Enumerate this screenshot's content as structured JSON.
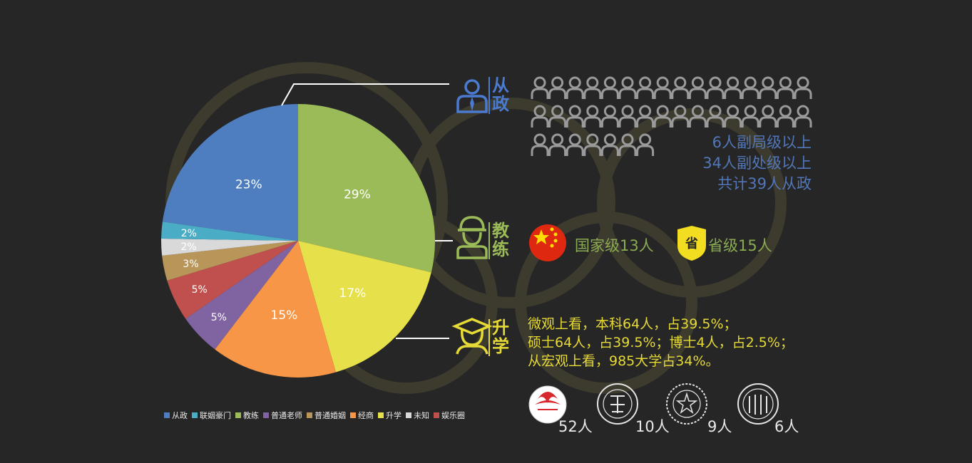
{
  "chart_data": {
    "type": "pie",
    "slices": [
      {
        "label": "从政",
        "value": 23,
        "display": "23%",
        "color": "#4e7ebf"
      },
      {
        "label": "联姻豪门",
        "value": 2,
        "display": "2%",
        "color": "#4bacc6"
      },
      {
        "label": "教练",
        "value": 29,
        "display": "29%",
        "color": "#9bbb59"
      },
      {
        "label": "普通老师",
        "value": 5,
        "display": "5%",
        "color": "#8064a2"
      },
      {
        "label": "普通婚姻",
        "value": 3,
        "display": "3%",
        "color": "#b8965a"
      },
      {
        "label": "经商",
        "value": 15,
        "display": "15%",
        "color": "#f79646"
      },
      {
        "label": "升学",
        "value": 17,
        "display": "17%",
        "color": "#e6e14a"
      },
      {
        "label": "未知",
        "value": 2,
        "display": "2%",
        "color": "#d9d9d9"
      },
      {
        "label": "娱乐圈",
        "value": 5,
        "display": "5%",
        "color": "#c0504d"
      }
    ],
    "clockwise_order": [
      "教练",
      "升学",
      "经商",
      "普通老师",
      "娱乐圈",
      "普通婚姻",
      "未知",
      "联姻豪门",
      "从政"
    ],
    "start_angle_deg": 0,
    "legend_position": "bottom"
  },
  "sections": {
    "politics": {
      "label_line1": "从",
      "label_line2": "政",
      "color": "#4a7bd0",
      "people_icon_count": 39,
      "lines": [
        "6人副局级以上",
        "34人副处级以上",
        "共计39人从政"
      ]
    },
    "coach": {
      "label_line1": "教",
      "label_line2": "练",
      "color": "#9bbb59",
      "national": "国家级13人",
      "provincial_badge": "省",
      "provincial": "省级15人"
    },
    "education": {
      "label_line1": "升",
      "label_line2": "学",
      "color": "#e6da36",
      "lines": [
        "微观上看，本科64人，占39.5%；",
        "硕士64人，占39.5%；博士4人，占2.5%；",
        "从宏观上看，985大学占34%。"
      ]
    }
  },
  "universities": [
    {
      "name": "北京体育大学",
      "count": "52人"
    },
    {
      "name": "北京大学",
      "count": "10人"
    },
    {
      "name": "清华大学",
      "count": "9人"
    },
    {
      "name": "university-seal-4",
      "count": "6人"
    }
  ],
  "colors": {
    "background": "#262626",
    "rings": "#3d3a2e",
    "people_icon": "#9a9a9a",
    "leader_line": "#ffffff"
  }
}
